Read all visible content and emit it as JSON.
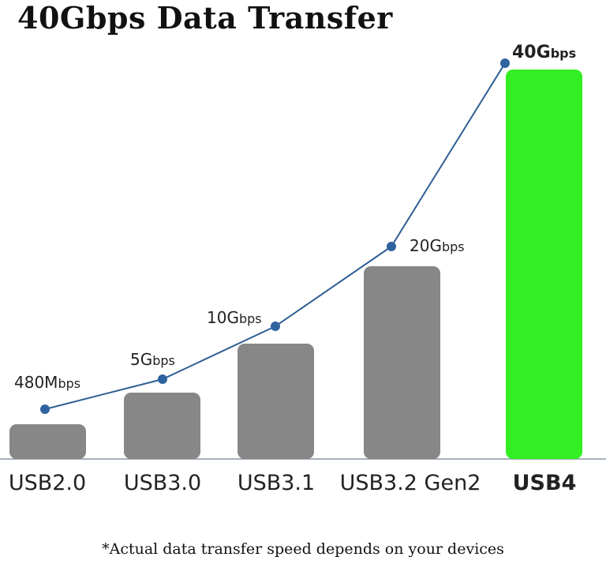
{
  "chart_data": {
    "type": "bar",
    "title": "40Gbps Data Transfer",
    "categories": [
      "USB2.0",
      "USB3.0",
      "USB3.1",
      "USB3.2 Gen2",
      "USB4"
    ],
    "values_gbps": [
      0.48,
      5,
      10,
      20,
      40
    ],
    "data_labels": [
      {
        "value": "480M",
        "unit": "bps"
      },
      {
        "value": "5G",
        "unit": "bps"
      },
      {
        "value": "10G",
        "unit": "bps"
      },
      {
        "value": "20G",
        "unit": "bps"
      },
      {
        "value": "40G",
        "unit": "bps"
      }
    ],
    "highlight_category": "USB4",
    "colors": {
      "bar": "#878787",
      "highlight_bar": "#33ee22",
      "line": "#2f5f94",
      "marker": "#2f639f",
      "axis": "#8a96a6"
    },
    "grid": false,
    "legend": "none",
    "footnote": "*Actual data transfer speed depends on your devices"
  }
}
